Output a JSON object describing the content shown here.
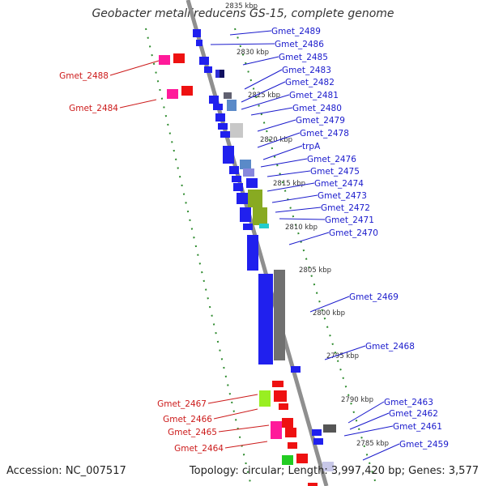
{
  "title": "Geobacter metallireducens GS-15, complete genome",
  "accession": "Accession: NC_007517",
  "topology": "Topology: circular; Length: 3,997,420 bp; Genes: 3,577",
  "colors": {
    "backbone": "#8c8c8c",
    "dotted_track": "#2e8b2e",
    "right_label": "#1a1acc",
    "left_label": "#cc1a1a",
    "forward_gene": "#ee1111",
    "reverse_gene": "#1111ee"
  },
  "kbp_ticks": [
    "2835 kbp",
    "2830 kbp",
    "2825 kbp",
    "2820 kbp",
    "2815 kbp",
    "2810 kbp",
    "2805 kbp",
    "2800 kbp",
    "2795 kbp",
    "2790 kbp",
    "2785 kbp"
  ],
  "right_genes": [
    "Gmet_2489",
    "Gmet_2486",
    "Gmet_2485",
    "Gmet_2483",
    "Gmet_2482",
    "Gmet_2481",
    "Gmet_2480",
    "Gmet_2479",
    "Gmet_2478",
    "trpA",
    "Gmet_2476",
    "Gmet_2475",
    "Gmet_2474",
    "Gmet_2473",
    "Gmet_2472",
    "Gmet_2471",
    "Gmet_2470",
    "Gmet_2469",
    "Gmet_2468",
    "Gmet_2463",
    "Gmet_2462",
    "Gmet_2461",
    "Gmet_2459"
  ],
  "left_genes": [
    "Gmet_2488",
    "Gmet_2484",
    "Gmet_2467",
    "Gmet_2466",
    "Gmet_2465",
    "Gmet_2464"
  ]
}
